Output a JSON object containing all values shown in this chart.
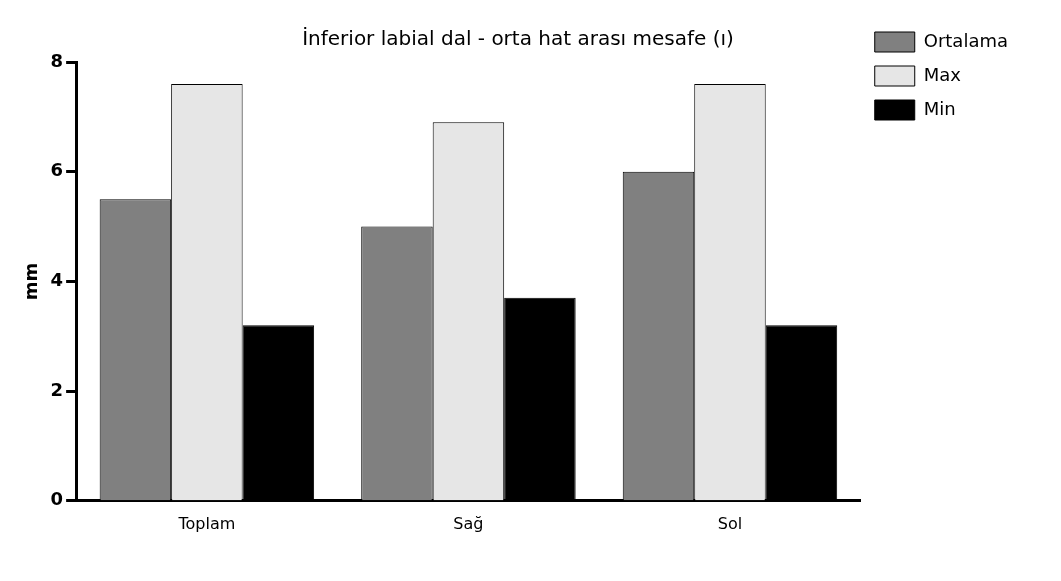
{
  "chart_data": {
    "type": "bar",
    "title": "İnferior labial dal - orta hat arası mesafe (ı)",
    "ylabel": "mm",
    "categories": [
      "Toplam",
      "Sağ",
      "Sol"
    ],
    "series": [
      {
        "name": "Ortalama",
        "color": "#808080",
        "values": [
          5.5,
          5.0,
          6.0
        ]
      },
      {
        "name": "Max",
        "color": "#e6e6e6",
        "values": [
          7.6,
          6.9,
          7.6
        ]
      },
      {
        "name": "Min",
        "color": "#000000",
        "values": [
          3.2,
          3.7,
          3.2
        ]
      }
    ],
    "ylim": [
      0,
      8
    ],
    "yticks": [
      0,
      2,
      4,
      6,
      8
    ],
    "grid": false,
    "legend": "top right"
  }
}
